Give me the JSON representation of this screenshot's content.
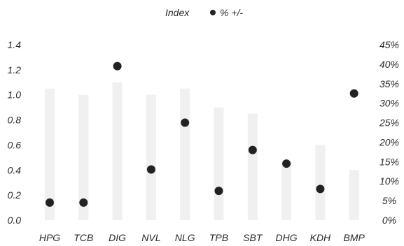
{
  "chart_data": {
    "type": "scatter",
    "title": "",
    "legend": {
      "placement": "top-center",
      "items": [
        {
          "label": "Index",
          "marker": "none"
        },
        {
          "label": "% +/-",
          "marker": "dot"
        }
      ]
    },
    "categories": [
      "HPG",
      "TCB",
      "DIG",
      "NVL",
      "NLG",
      "TPB",
      "SBT",
      "DHG",
      "KDH",
      "BMP"
    ],
    "series": [
      {
        "name": "Index",
        "axis": "left",
        "style": "faint-bar",
        "values": [
          1.05,
          1.0,
          1.1,
          1.0,
          1.05,
          0.9,
          0.85,
          0.45,
          0.6,
          0.4
        ]
      },
      {
        "name": "% +/-",
        "axis": "right",
        "style": "dot",
        "values": [
          4.5,
          4.5,
          39.5,
          13.0,
          25.0,
          7.5,
          18.0,
          14.5,
          8.0,
          32.5
        ]
      }
    ],
    "left_axis": {
      "range": [
        0,
        1.4
      ],
      "ticks": [
        0,
        0.2,
        0.4,
        0.6,
        0.8,
        1.0,
        1.2,
        1.4
      ],
      "tick_labels": [
        "0.0",
        "0.2",
        "0.4",
        "0.6",
        "0.8",
        "1.0",
        "1.2",
        "1.4"
      ]
    },
    "right_axis": {
      "range": [
        0,
        45
      ],
      "ticks": [
        0,
        5,
        10,
        15,
        20,
        25,
        30,
        35,
        40,
        45
      ],
      "tick_labels": [
        "0%",
        "5%",
        "10%",
        "15%",
        "20%",
        "25%",
        "30%",
        "35%",
        "40%",
        "45%"
      ]
    },
    "grid": false,
    "colors": {
      "dot": "#222222",
      "bar": "#f0f0f0",
      "text": "#2a2a2a"
    }
  }
}
